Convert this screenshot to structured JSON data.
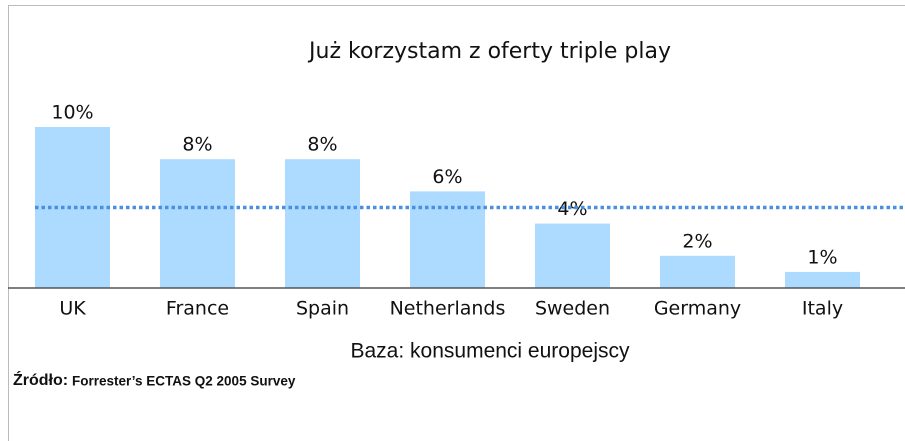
{
  "chart_data": {
    "type": "bar",
    "title": "Już korzystam z oferty triple play",
    "categories": [
      "UK",
      "France",
      "Spain",
      "Netherlands",
      "Sweden",
      "Germany",
      "Italy"
    ],
    "values": [
      10,
      8,
      8,
      6,
      4,
      2,
      1
    ],
    "value_labels": [
      "10%",
      "8%",
      "8%",
      "6%",
      "4%",
      "2%",
      "1%"
    ],
    "color": "#addaff",
    "reference_line": {
      "value": 5,
      "color": "#4a8fe0"
    },
    "base_note": "Baza: konsumenci europejscy",
    "source_label": "Źródło:",
    "source": "Forrester’s ECTAS Q2 2005 Survey"
  }
}
